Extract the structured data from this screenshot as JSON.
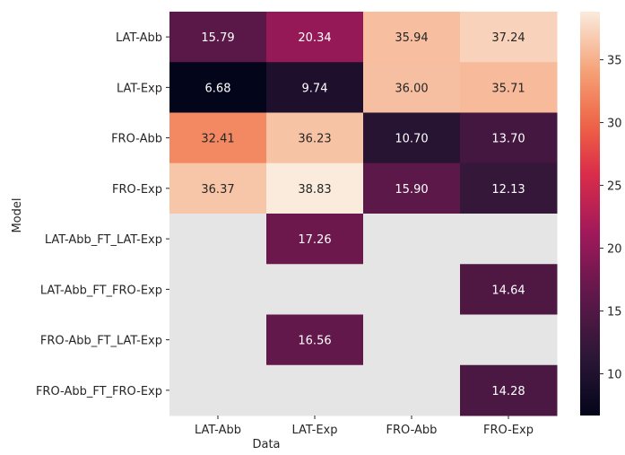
{
  "chart_data": {
    "type": "heatmap",
    "title": "",
    "xlabel": "Data",
    "ylabel": "Model",
    "x_categories": [
      "LAT-Abb",
      "LAT-Exp",
      "FRO-Abb",
      "FRO-Exp"
    ],
    "y_categories": [
      "LAT-Abb",
      "LAT-Exp",
      "FRO-Abb",
      "FRO-Exp",
      "LAT-Abb_FT_LAT-Exp",
      "LAT-Abb_FT_FRO-Exp",
      "FRO-Abb_FT_LAT-Exp",
      "FRO-Abb_FT_FRO-Exp"
    ],
    "values": [
      [
        15.79,
        20.34,
        35.94,
        37.24
      ],
      [
        6.68,
        9.74,
        36.0,
        35.71
      ],
      [
        32.41,
        36.23,
        10.7,
        13.7
      ],
      [
        36.37,
        38.83,
        15.9,
        12.13
      ],
      [
        null,
        17.26,
        null,
        null
      ],
      [
        null,
        null,
        null,
        14.64
      ],
      [
        null,
        16.56,
        null,
        null
      ],
      [
        null,
        null,
        null,
        14.28
      ]
    ],
    "value_labels": [
      [
        "15.79",
        "20.34",
        "35.94",
        "37.24"
      ],
      [
        "6.68",
        "9.74",
        "36.00",
        "35.71"
      ],
      [
        "32.41",
        "36.23",
        "10.70",
        "13.70"
      ],
      [
        "36.37",
        "38.83",
        "15.90",
        "12.13"
      ],
      [
        "",
        "17.26",
        "",
        ""
      ],
      [
        "",
        "",
        "",
        "14.64"
      ],
      [
        "",
        "16.56",
        "",
        ""
      ],
      [
        "",
        "",
        "",
        "14.28"
      ]
    ],
    "colorbar": {
      "min": 6.68,
      "max": 38.83,
      "ticks": [
        10,
        15,
        20,
        25,
        30,
        35
      ],
      "tick_labels": [
        "10",
        "15",
        "20",
        "25",
        "30",
        "35"
      ],
      "colormap": "rocket"
    },
    "missing_color": "#e5e5e5"
  }
}
